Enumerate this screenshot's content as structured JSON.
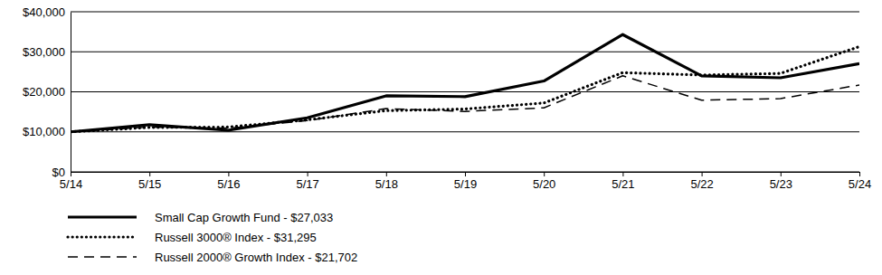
{
  "chart_data": {
    "type": "line",
    "categories": [
      "5/14",
      "5/15",
      "5/16",
      "5/17",
      "5/18",
      "5/19",
      "5/20",
      "5/21",
      "5/22",
      "5/23",
      "5/24"
    ],
    "series": [
      {
        "name": "Small Cap Growth Fund - $27,033",
        "color": "#000000",
        "line_style": "solid",
        "values": [
          10000,
          11800,
          10400,
          13500,
          19000,
          18800,
          22700,
          34300,
          24000,
          23500,
          27033
        ]
      },
      {
        "name": "Russell 3000® Index - $31,295",
        "color": "#000000",
        "line_style": "dotted",
        "values": [
          10000,
          11100,
          11200,
          13000,
          15300,
          15700,
          17200,
          24800,
          24200,
          24600,
          31295
        ]
      },
      {
        "name": "Russell 2000® Growth Index - $21,702",
        "color": "#000000",
        "line_style": "dashed",
        "values": [
          10000,
          11200,
          10900,
          12800,
          15800,
          15100,
          16000,
          24000,
          17900,
          18300,
          21702
        ]
      }
    ],
    "ylim": [
      0,
      40000
    ],
    "yticks": [
      {
        "value": 0,
        "label": "$0"
      },
      {
        "value": 10000,
        "label": "$10,000"
      },
      {
        "value": 20000,
        "label": "$20,000"
      },
      {
        "value": 30000,
        "label": "$30,000"
      },
      {
        "value": 40000,
        "label": "$40,000"
      }
    ],
    "grid": true,
    "legend": "bottom"
  }
}
